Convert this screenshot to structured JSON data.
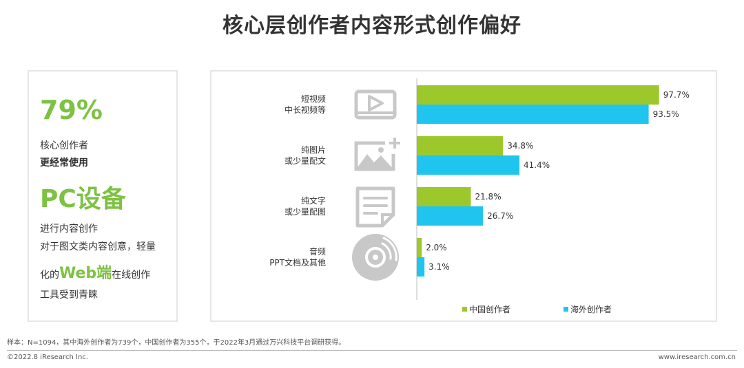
{
  "page": {
    "title": "核心层创作者内容形式创作偏好",
    "footnote": "样本：N=1094，其中海外创作者为739个，中国创作者为355个，于2022年3月通过万兴科技平台调研获得。",
    "copyright": "©2022.8 iResearch Inc.",
    "website": "www.iresearch.com.cn"
  },
  "left_panel": {
    "percent": "79%",
    "line1": "核心创作者",
    "line2": "更经常使用",
    "device": "PC设备",
    "line3": "进行内容创作",
    "line4": "对于图文类内容创意，轻量",
    "line5_pre": "化的",
    "line5_web": "Web端",
    "line5_post": "在线创作",
    "line6": "工具受到青睐"
  },
  "colors": {
    "china": "#9dc82c",
    "overseas": "#1fc4ef",
    "accent": "#7dc242",
    "icon": "#c8c8c8"
  },
  "chart_data": {
    "type": "bar",
    "orientation": "horizontal",
    "categories": [
      [
        "短视频",
        "中长视频等"
      ],
      [
        "纯图片",
        "或少量配文"
      ],
      [
        "纯文字",
        "或少量配图"
      ],
      [
        "音频",
        "PPT文档及其他"
      ]
    ],
    "category_icons": [
      "video-play-icon",
      "image-plus-icon",
      "document-text-icon",
      "audio-disc-icon"
    ],
    "series": [
      {
        "name": "中国创作者",
        "values": [
          97.7,
          34.8,
          21.8,
          2.0
        ],
        "labels": [
          "97.7%",
          "34.8%",
          "21.8%",
          "2.0%"
        ]
      },
      {
        "name": "海外创作者",
        "values": [
          93.5,
          41.4,
          26.7,
          3.1
        ],
        "labels": [
          "93.5%",
          "41.4%",
          "26.7%",
          "3.1%"
        ]
      }
    ],
    "xlim": [
      0,
      100
    ],
    "legend_position": "bottom-right"
  }
}
